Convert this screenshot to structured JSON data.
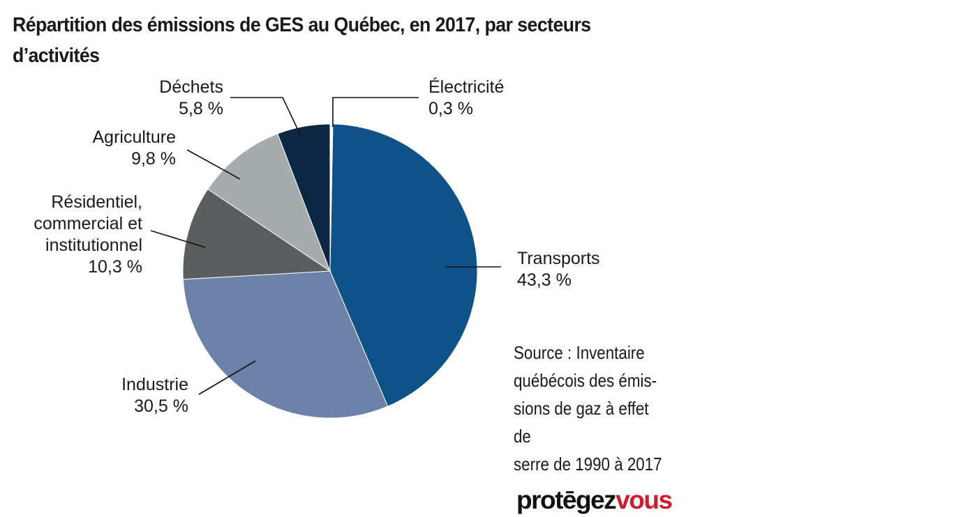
{
  "title": "Répartition des émissions de GES au Québec, en 2017, par secteurs d’activités",
  "chart_data": {
    "type": "pie",
    "title": "Répartition des émissions de GES au Québec, en 2017, par secteurs d’activités",
    "slices": [
      {
        "label": "Électricité",
        "value_label": "0,3 %",
        "value": 0.3,
        "color": "#ffffff"
      },
      {
        "label": "Transports",
        "value_label": "43,3 %",
        "value": 43.3,
        "color": "#0f5189"
      },
      {
        "label": "Industrie",
        "value_label": "30,5 %",
        "value": 30.5,
        "color": "#6d82a8"
      },
      {
        "label": "Résidentiel, commercial et institutionnel",
        "label_lines": [
          "Résidentiel,",
          "commercial et",
          "institutionnel"
        ],
        "value_label": "10,3 %",
        "value": 10.3,
        "color": "#5b5e5f"
      },
      {
        "label": "Agriculture",
        "value_label": "9,8 %",
        "value": 9.8,
        "color": "#a6abad"
      },
      {
        "label": "Déchets",
        "value_label": "5,8 %",
        "value": 5.8,
        "color": "#0c2744"
      }
    ]
  },
  "source_text": "Source : Inventaire québécois des émis-sions de gaz à effet de serre de 1990 à 2017",
  "source_lines": [
    "Source : Inventaire",
    "québécois des émis-",
    "sions de gaz à effet de",
    "serre de 1990 à 2017"
  ],
  "logo": {
    "part1": "protēgez",
    "part2": "vous",
    "colors": {
      "part1": "#111111",
      "part2": "#d11a2a"
    }
  }
}
